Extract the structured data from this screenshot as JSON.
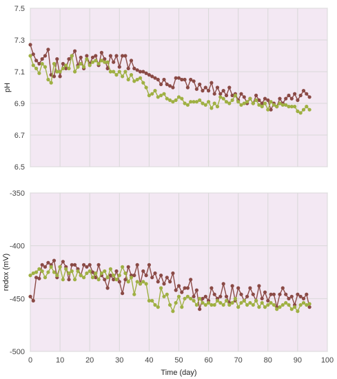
{
  "colors": {
    "series_1": "#8a4a45",
    "series_2": "#9fb043",
    "plot_background": "#f3e8f3",
    "gridline": "#d8d8d8"
  },
  "chart_data": [
    {
      "type": "line",
      "xlabel": "",
      "ylabel": "pH",
      "xlim": [
        0,
        100
      ],
      "ylim": [
        6.5,
        7.5
      ],
      "xticks": [
        0,
        10,
        20,
        30,
        40,
        50,
        60,
        70,
        80,
        90,
        100
      ],
      "yticks": [
        "6.5",
        "6.7",
        "6.9",
        "7.1",
        "7.3",
        "7.5"
      ],
      "grid": true,
      "series": [
        {
          "x": [
            0,
            1,
            2,
            3,
            4,
            5,
            6,
            7,
            8,
            9,
            10,
            11,
            12,
            13,
            14,
            15,
            16,
            17,
            18,
            19,
            20,
            21,
            22,
            23,
            24,
            25,
            26,
            27,
            28,
            29,
            30,
            31,
            32,
            33,
            34,
            35,
            36,
            37,
            38,
            39,
            40,
            41,
            42,
            43,
            44,
            45,
            46,
            47,
            48,
            49,
            50,
            51,
            52,
            53,
            54,
            55,
            56,
            57,
            58,
            59,
            60,
            61,
            62,
            63,
            64,
            65,
            66,
            67,
            68,
            69,
            70,
            71,
            72,
            73,
            74,
            75,
            76,
            77,
            78,
            79,
            80,
            81,
            82,
            83,
            84,
            85,
            86,
            87,
            88,
            89,
            90,
            91,
            92,
            93,
            94
          ],
          "y": [
            7.27,
            7.21,
            7.17,
            7.15,
            7.18,
            7.2,
            7.24,
            7.08,
            7.07,
            7.18,
            7.07,
            7.15,
            7.12,
            7.18,
            7.2,
            7.23,
            7.14,
            7.19,
            7.12,
            7.2,
            7.15,
            7.19,
            7.2,
            7.14,
            7.22,
            7.18,
            7.12,
            7.2,
            7.16,
            7.2,
            7.13,
            7.2,
            7.2,
            7.12,
            7.17,
            7.12,
            7.11,
            7.1,
            7.1,
            7.09,
            7.08,
            7.07,
            7.06,
            7.05,
            7.02,
            7.05,
            7.02,
            7.01,
            7.0,
            7.06,
            7.06,
            7.05,
            7.05,
            7.0,
            7.05,
            7.04,
            6.99,
            7.02,
            6.98,
            7.0,
            6.98,
            7.03,
            6.96,
            7.0,
            6.96,
            6.98,
            6.95,
            7.0,
            6.95,
            6.96,
            6.92,
            6.96,
            6.94,
            6.9,
            6.93,
            6.9,
            6.95,
            6.92,
            6.9,
            6.93,
            6.92,
            6.86,
            6.9,
            6.88,
            6.93,
            6.9,
            6.93,
            6.95,
            6.93,
            6.96,
            6.92,
            6.95,
            6.98,
            6.96,
            6.94
          ]
        },
        {
          "x": [
            0,
            1,
            2,
            3,
            4,
            5,
            6,
            7,
            8,
            9,
            10,
            11,
            12,
            13,
            14,
            15,
            16,
            17,
            18,
            19,
            20,
            21,
            22,
            23,
            24,
            25,
            26,
            27,
            28,
            29,
            30,
            31,
            32,
            33,
            34,
            35,
            36,
            37,
            38,
            39,
            40,
            41,
            42,
            43,
            44,
            45,
            46,
            47,
            48,
            49,
            50,
            51,
            52,
            53,
            54,
            55,
            56,
            57,
            58,
            59,
            60,
            61,
            62,
            63,
            64,
            65,
            66,
            67,
            68,
            69,
            70,
            71,
            72,
            73,
            74,
            75,
            76,
            77,
            78,
            79,
            80,
            81,
            82,
            83,
            84,
            85,
            86,
            87,
            88,
            89,
            90,
            91,
            92,
            93,
            94
          ],
          "y": [
            7.2,
            7.14,
            7.12,
            7.09,
            7.15,
            7.13,
            7.05,
            7.03,
            7.15,
            7.1,
            7.1,
            7.12,
            7.14,
            7.12,
            7.2,
            7.1,
            7.13,
            7.15,
            7.13,
            7.18,
            7.14,
            7.16,
            7.17,
            7.15,
            7.17,
            7.16,
            7.16,
            7.1,
            7.1,
            7.08,
            7.1,
            7.07,
            7.1,
            7.05,
            7.08,
            7.04,
            7.05,
            7.06,
            7.03,
            7.0,
            6.95,
            6.96,
            6.98,
            6.94,
            6.95,
            6.96,
            6.93,
            6.92,
            6.91,
            6.92,
            6.94,
            6.93,
            6.9,
            6.89,
            6.91,
            6.91,
            6.91,
            6.92,
            6.9,
            6.89,
            6.91,
            6.87,
            6.9,
            6.88,
            6.94,
            6.93,
            6.91,
            6.9,
            6.92,
            6.95,
            6.91,
            6.89,
            6.9,
            6.91,
            6.93,
            6.9,
            6.92,
            6.89,
            6.88,
            6.9,
            6.86,
            6.91,
            6.89,
            6.88,
            6.9,
            6.89,
            6.89,
            6.88,
            6.88,
            6.88,
            6.85,
            6.84,
            6.86,
            6.88,
            6.86
          ]
        }
      ]
    },
    {
      "type": "line",
      "xlabel": "Time (day)",
      "ylabel": "redox (mV)",
      "xlim": [
        0,
        100
      ],
      "ylim": [
        -500,
        -350
      ],
      "xticks": [
        0,
        10,
        20,
        30,
        40,
        50,
        60,
        70,
        80,
        90,
        100
      ],
      "yticks": [
        "-500",
        "-450",
        "-400",
        "-350"
      ],
      "grid": true,
      "series": [
        {
          "x": [
            0,
            1,
            2,
            3,
            4,
            5,
            6,
            7,
            8,
            9,
            10,
            11,
            12,
            13,
            14,
            15,
            16,
            17,
            18,
            19,
            20,
            21,
            22,
            23,
            24,
            25,
            26,
            27,
            28,
            29,
            30,
            31,
            32,
            33,
            34,
            35,
            36,
            37,
            38,
            39,
            40,
            41,
            42,
            43,
            44,
            45,
            46,
            47,
            48,
            49,
            50,
            51,
            52,
            53,
            54,
            55,
            56,
            57,
            58,
            59,
            60,
            61,
            62,
            63,
            64,
            65,
            66,
            67,
            68,
            69,
            70,
            71,
            72,
            73,
            74,
            75,
            76,
            77,
            78,
            79,
            80,
            81,
            82,
            83,
            84,
            85,
            86,
            87,
            88,
            89,
            90,
            91,
            92,
            93,
            94
          ],
          "y": [
            -448,
            -452,
            -430,
            -431,
            -418,
            -420,
            -416,
            -418,
            -414,
            -430,
            -420,
            -415,
            -420,
            -432,
            -418,
            -418,
            -422,
            -428,
            -418,
            -420,
            -418,
            -425,
            -430,
            -418,
            -428,
            -432,
            -440,
            -428,
            -432,
            -424,
            -434,
            -445,
            -432,
            -420,
            -428,
            -428,
            -418,
            -436,
            -424,
            -428,
            -418,
            -430,
            -426,
            -434,
            -428,
            -436,
            -430,
            -434,
            -426,
            -442,
            -438,
            -444,
            -440,
            -440,
            -432,
            -448,
            -442,
            -460,
            -450,
            -448,
            -452,
            -440,
            -446,
            -450,
            -448,
            -436,
            -448,
            -454,
            -438,
            -452,
            -440,
            -446,
            -452,
            -448,
            -440,
            -446,
            -452,
            -438,
            -450,
            -444,
            -452,
            -446,
            -446,
            -458,
            -446,
            -440,
            -446,
            -450,
            -448,
            -456,
            -446,
            -448,
            -450,
            -446,
            -458
          ]
        },
        {
          "x": [
            0,
            1,
            2,
            3,
            4,
            5,
            6,
            7,
            8,
            9,
            10,
            11,
            12,
            13,
            14,
            15,
            16,
            17,
            18,
            19,
            20,
            21,
            22,
            23,
            24,
            25,
            26,
            27,
            28,
            29,
            30,
            31,
            32,
            33,
            34,
            35,
            36,
            37,
            38,
            39,
            40,
            41,
            42,
            43,
            44,
            45,
            46,
            47,
            48,
            49,
            50,
            51,
            52,
            53,
            54,
            55,
            56,
            57,
            58,
            59,
            60,
            61,
            62,
            63,
            64,
            65,
            66,
            67,
            68,
            69,
            70,
            71,
            72,
            73,
            74,
            75,
            76,
            77,
            78,
            79,
            80,
            81,
            82,
            83,
            84,
            85,
            86,
            87,
            88,
            89,
            90,
            91,
            92,
            93,
            94
          ],
          "y": [
            -428,
            -426,
            -425,
            -422,
            -424,
            -430,
            -425,
            -420,
            -425,
            -428,
            -420,
            -432,
            -422,
            -426,
            -424,
            -432,
            -424,
            -428,
            -430,
            -426,
            -424,
            -430,
            -426,
            -432,
            -426,
            -424,
            -430,
            -422,
            -428,
            -432,
            -428,
            -420,
            -426,
            -434,
            -430,
            -446,
            -434,
            -436,
            -434,
            -436,
            -452,
            -452,
            -456,
            -458,
            -440,
            -448,
            -446,
            -456,
            -462,
            -454,
            -448,
            -458,
            -450,
            -448,
            -450,
            -452,
            -456,
            -450,
            -454,
            -456,
            -454,
            -456,
            -456,
            -452,
            -454,
            -456,
            -452,
            -456,
            -454,
            -450,
            -458,
            -454,
            -452,
            -456,
            -454,
            -456,
            -452,
            -458,
            -454,
            -458,
            -456,
            -454,
            -456,
            -460,
            -458,
            -456,
            -454,
            -456,
            -460,
            -458,
            -462,
            -456,
            -454,
            -456,
            -455
          ]
        }
      ]
    }
  ]
}
